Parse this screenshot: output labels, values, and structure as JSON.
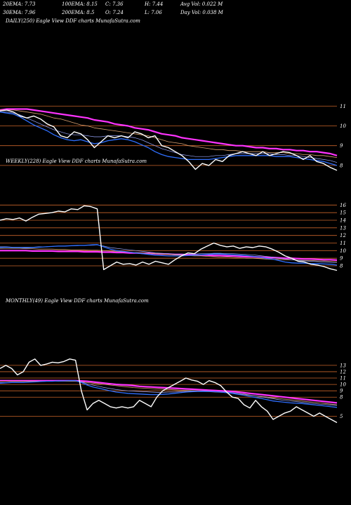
{
  "header": {
    "row1": [
      "20EMA: 7.73",
      "100EMA: 8.15",
      "C: 7.36",
      "H: 7.44",
      "Avg Vol: 0.022  M"
    ],
    "row2": [
      "30EMA: 7.96",
      "200EMA: 8.5",
      "O: 7.24",
      "L: 7.06",
      "Day Vol: 0.038  M"
    ]
  },
  "colors": {
    "background": "#000000",
    "price": "#ffffff",
    "ema_short": "#2f6fff",
    "ema_long": "#ff33ff",
    "level_line": "#c8642a"
  },
  "chart_data": [
    {
      "type": "line",
      "title": "DAILY(250) Eagle   View  DDF charts MunafaSutra.com",
      "ylim": [
        7.5,
        11.4
      ],
      "yticks": [
        "11",
        "10",
        "9",
        "8"
      ],
      "levels": [
        11,
        10,
        9,
        8
      ],
      "series": [
        {
          "values": [
            10.75,
            10.8,
            10.7,
            10.5,
            10.4,
            10.5,
            10.35,
            10.1,
            9.95,
            9.5,
            9.4,
            9.7,
            9.6,
            9.3,
            8.9,
            9.2,
            9.5,
            9.4,
            9.5,
            9.4,
            9.7,
            9.6,
            9.4,
            9.5,
            9.0,
            8.9,
            8.7,
            8.5,
            8.2,
            7.8,
            8.1,
            8.0,
            8.3,
            8.2,
            8.5,
            8.6,
            8.7,
            8.6,
            8.5,
            8.7,
            8.5,
            8.6,
            8.7,
            8.65,
            8.5,
            8.3,
            8.5,
            8.2,
            8.1,
            7.9,
            7.75
          ]
        },
        {
          "values": [
            10.7,
            10.65,
            10.6,
            10.45,
            10.25,
            10.05,
            9.9,
            9.75,
            9.55,
            9.4,
            9.3,
            9.25,
            9.3,
            9.2,
            9.1,
            9.15,
            9.25,
            9.3,
            9.35,
            9.3,
            9.2,
            9.05,
            8.9,
            8.7,
            8.55,
            8.45,
            8.4,
            8.35,
            8.3,
            8.3,
            8.3,
            8.3,
            8.35,
            8.4,
            8.45,
            8.5,
            8.5,
            8.5,
            8.5,
            8.5,
            8.5,
            8.45,
            8.45,
            8.45,
            8.4,
            8.35,
            8.3,
            8.25,
            8.2,
            8.1,
            8.0
          ]
        },
        {
          "values": [
            10.7,
            10.7,
            10.65,
            10.55,
            10.4,
            10.25,
            10.1,
            9.95,
            9.8,
            9.7,
            9.6,
            9.55,
            9.55,
            9.5,
            9.45,
            9.45,
            9.5,
            9.5,
            9.5,
            9.45,
            9.4,
            9.3,
            9.15,
            9.0,
            8.85,
            8.75,
            8.65,
            8.55,
            8.5,
            8.45,
            8.45,
            8.45,
            8.5,
            8.5,
            8.55,
            8.6,
            8.6,
            8.6,
            8.6,
            8.6,
            8.6,
            8.55,
            8.55,
            8.5,
            8.5,
            8.45,
            8.4,
            8.35,
            8.3,
            8.25,
            8.15
          ]
        },
        {
          "values": [
            10.8,
            10.8,
            10.8,
            10.75,
            10.7,
            10.65,
            10.6,
            10.5,
            10.4,
            10.35,
            10.25,
            10.15,
            10.05,
            10.0,
            9.9,
            9.85,
            9.8,
            9.75,
            9.7,
            9.65,
            9.6,
            9.55,
            9.5,
            9.4,
            9.3,
            9.2,
            9.15,
            9.1,
            9.0,
            8.95,
            8.9,
            8.85,
            8.8,
            8.8,
            8.75,
            8.75,
            8.7,
            8.7,
            8.7,
            8.7,
            8.65,
            8.65,
            8.65,
            8.6,
            8.6,
            8.55,
            8.55,
            8.5,
            8.5,
            8.45,
            8.4
          ]
        },
        {
          "values": [
            10.8,
            10.85,
            10.85,
            10.85,
            10.85,
            10.8,
            10.75,
            10.7,
            10.65,
            10.6,
            10.55,
            10.5,
            10.45,
            10.4,
            10.3,
            10.25,
            10.2,
            10.1,
            10.05,
            10.0,
            9.9,
            9.85,
            9.8,
            9.7,
            9.6,
            9.55,
            9.5,
            9.4,
            9.35,
            9.3,
            9.25,
            9.2,
            9.15,
            9.1,
            9.05,
            9.0,
            9.0,
            8.95,
            8.9,
            8.9,
            8.85,
            8.85,
            8.8,
            8.8,
            8.75,
            8.75,
            8.7,
            8.7,
            8.65,
            8.6,
            8.5
          ]
        }
      ]
    },
    {
      "type": "line",
      "title": "WEEKLY(228) Eagle   View  DDF charts MunafaSutra.com",
      "ylim": [
        6.8,
        16.4
      ],
      "yticks": [
        "16",
        "15",
        "14",
        "13",
        "12",
        "11",
        "10",
        "9",
        "8"
      ],
      "levels": [
        16,
        15,
        14,
        13,
        12,
        11,
        10,
        9,
        8
      ],
      "series": [
        {
          "values": [
            14.0,
            14.2,
            14.1,
            14.3,
            13.9,
            14.4,
            14.8,
            14.9,
            15.0,
            15.2,
            15.1,
            15.5,
            15.4,
            15.9,
            15.8,
            15.5,
            7.5,
            8.0,
            8.5,
            8.2,
            8.3,
            8.1,
            8.5,
            8.2,
            8.6,
            8.4,
            8.2,
            8.8,
            9.3,
            9.7,
            9.6,
            10.2,
            10.6,
            11.0,
            10.7,
            10.5,
            10.6,
            10.3,
            10.5,
            10.4,
            10.6,
            10.5,
            10.2,
            9.8,
            9.3,
            9.0,
            8.6,
            8.5,
            8.2,
            8.1,
            7.9,
            7.6,
            7.4
          ]
        },
        {
          "values": [
            10.4,
            10.45,
            10.4,
            10.4,
            10.35,
            10.4,
            10.45,
            10.5,
            10.55,
            10.6,
            10.6,
            10.65,
            10.7,
            10.7,
            10.75,
            10.8,
            10.5,
            10.2,
            10.0,
            9.9,
            9.8,
            9.7,
            9.6,
            9.5,
            9.4,
            9.35,
            9.3,
            9.3,
            9.3,
            9.35,
            9.4,
            9.45,
            9.5,
            9.55,
            9.55,
            9.5,
            9.45,
            9.4,
            9.35,
            9.25,
            9.15,
            9.0,
            8.9,
            8.7,
            8.5,
            8.4,
            8.35,
            8.35,
            8.3,
            8.3,
            8.25,
            8.2,
            8.1
          ]
        },
        {
          "values": [
            10.5,
            10.5,
            10.45,
            10.45,
            10.45,
            10.45,
            10.5,
            10.5,
            10.55,
            10.6,
            10.6,
            10.65,
            10.65,
            10.7,
            10.7,
            10.75,
            10.6,
            10.4,
            10.3,
            10.2,
            10.1,
            10.0,
            9.9,
            9.8,
            9.7,
            9.65,
            9.6,
            9.55,
            9.55,
            9.55,
            9.55,
            9.6,
            9.6,
            9.65,
            9.65,
            9.6,
            9.6,
            9.55,
            9.5,
            9.45,
            9.35,
            9.25,
            9.15,
            9.0,
            8.9,
            8.8,
            8.7,
            8.65,
            8.6,
            8.55,
            8.5,
            8.45,
            8.4
          ]
        },
        {
          "values": [
            10.3,
            10.3,
            10.3,
            10.3,
            10.25,
            10.25,
            10.2,
            10.2,
            10.2,
            10.15,
            10.15,
            10.1,
            10.1,
            10.1,
            10.05,
            10.05,
            10.0,
            9.95,
            9.9,
            9.85,
            9.8,
            9.75,
            9.7,
            9.65,
            9.6,
            9.55,
            9.5,
            9.45,
            9.4,
            9.35,
            9.3,
            9.3,
            9.25,
            9.2,
            9.15,
            9.15,
            9.1,
            9.05,
            9.0,
            9.0,
            8.95,
            8.9,
            8.85,
            8.85,
            8.8,
            8.8,
            8.75,
            8.7,
            8.7,
            8.65,
            8.65,
            8.6,
            8.55
          ]
        },
        {
          "values": [
            10.0,
            10.0,
            10.0,
            10.0,
            10.0,
            9.95,
            9.95,
            9.95,
            9.95,
            9.9,
            9.9,
            9.9,
            9.9,
            9.85,
            9.85,
            9.85,
            9.8,
            9.8,
            9.75,
            9.75,
            9.7,
            9.7,
            9.65,
            9.65,
            9.6,
            9.55,
            9.55,
            9.5,
            9.5,
            9.45,
            9.45,
            9.4,
            9.4,
            9.35,
            9.35,
            9.3,
            9.3,
            9.25,
            9.2,
            9.2,
            9.15,
            9.1,
            9.1,
            9.05,
            9.0,
            9.0,
            8.95,
            8.9,
            8.9,
            8.85,
            8.8,
            8.8,
            8.75
          ]
        }
      ]
    },
    {
      "type": "line",
      "title": "MONTHLY(49) Eagle   View  DDF charts MunafaSutra.com",
      "ylim": [
        4.5,
        14.2
      ],
      "yticks": [
        "13",
        "12",
        "11",
        "10",
        "9",
        "8",
        "5"
      ],
      "levels": [
        13,
        12,
        11,
        10,
        9,
        8,
        5
      ],
      "series": [
        {
          "values": [
            12.5,
            13.0,
            12.5,
            11.5,
            12.0,
            13.5,
            14.0,
            13.0,
            13.2,
            13.5,
            13.4,
            13.6,
            14.0,
            13.8,
            9.0,
            6.0,
            7.0,
            7.5,
            7.0,
            6.5,
            6.3,
            6.5,
            6.3,
            6.5,
            7.5,
            7.0,
            6.5,
            8.0,
            9.0,
            9.5,
            10.0,
            10.5,
            11.0,
            10.7,
            10.5,
            10.0,
            10.6,
            10.3,
            9.8,
            8.8,
            8.0,
            7.8,
            6.8,
            6.3,
            7.5,
            6.5,
            5.8,
            4.5,
            5.0,
            5.5,
            5.8,
            6.5,
            6.0,
            5.5,
            5.0,
            5.5,
            5.0,
            4.5,
            4.0
          ]
        },
        {
          "values": [
            10.2,
            10.25,
            10.3,
            10.3,
            10.3,
            10.35,
            10.4,
            10.45,
            10.5,
            10.5,
            10.55,
            10.55,
            10.6,
            10.6,
            10.3,
            9.9,
            9.6,
            9.4,
            9.2,
            9.0,
            8.8,
            8.7,
            8.6,
            8.55,
            8.5,
            8.45,
            8.4,
            8.4,
            8.45,
            8.5,
            8.6,
            8.7,
            8.8,
            8.85,
            8.9,
            8.9,
            8.9,
            8.85,
            8.8,
            8.7,
            8.6,
            8.45,
            8.3,
            8.1,
            7.95,
            7.8,
            7.6,
            7.4,
            7.3,
            7.2,
            7.1,
            7.05,
            7.0,
            6.9,
            6.8,
            6.7,
            6.6,
            6.5,
            6.4
          ]
        },
        {
          "values": [
            10.3,
            10.3,
            10.35,
            10.35,
            10.35,
            10.4,
            10.4,
            10.45,
            10.5,
            10.5,
            10.5,
            10.55,
            10.55,
            10.6,
            10.4,
            10.1,
            9.9,
            9.7,
            9.5,
            9.35,
            9.2,
            9.1,
            9.0,
            8.95,
            8.9,
            8.85,
            8.8,
            8.75,
            8.75,
            8.8,
            8.8,
            8.85,
            8.9,
            8.95,
            8.95,
            9.0,
            8.95,
            8.9,
            8.85,
            8.8,
            8.7,
            8.6,
            8.5,
            8.35,
            8.2,
            8.05,
            7.9,
            7.75,
            7.6,
            7.5,
            7.4,
            7.3,
            7.2,
            7.1,
            7.0,
            6.9,
            6.85,
            6.75,
            6.7
          ]
        },
        {
          "values": [
            10.5,
            10.5,
            10.5,
            10.5,
            10.5,
            10.5,
            10.5,
            10.5,
            10.5,
            10.5,
            10.5,
            10.5,
            10.5,
            10.5,
            10.4,
            10.3,
            10.2,
            10.1,
            10.0,
            9.9,
            9.8,
            9.7,
            9.6,
            9.5,
            9.45,
            9.4,
            9.35,
            9.3,
            9.25,
            9.2,
            9.15,
            9.1,
            9.05,
            9.0,
            8.95,
            8.9,
            8.85,
            8.8,
            8.75,
            8.7,
            8.6,
            8.5,
            8.4,
            8.3,
            8.2,
            8.1,
            8.0,
            7.9,
            7.8,
            7.7,
            7.6,
            7.5,
            7.4,
            7.3,
            7.2,
            7.1,
            7.0,
            6.9,
            6.8
          ]
        },
        {
          "values": [
            10.6,
            10.6,
            10.6,
            10.6,
            10.6,
            10.6,
            10.6,
            10.6,
            10.6,
            10.6,
            10.6,
            10.6,
            10.6,
            10.6,
            10.55,
            10.5,
            10.4,
            10.3,
            10.2,
            10.1,
            10.0,
            9.95,
            9.9,
            9.8,
            9.7,
            9.65,
            9.6,
            9.55,
            9.5,
            9.45,
            9.4,
            9.35,
            9.3,
            9.25,
            9.2,
            9.15,
            9.1,
            9.05,
            9.0,
            8.95,
            8.9,
            8.8,
            8.7,
            8.6,
            8.5,
            8.4,
            8.3,
            8.2,
            8.1,
            8.0,
            7.9,
            7.8,
            7.7,
            7.6,
            7.5,
            7.4,
            7.3,
            7.2,
            7.1
          ]
        }
      ]
    }
  ]
}
